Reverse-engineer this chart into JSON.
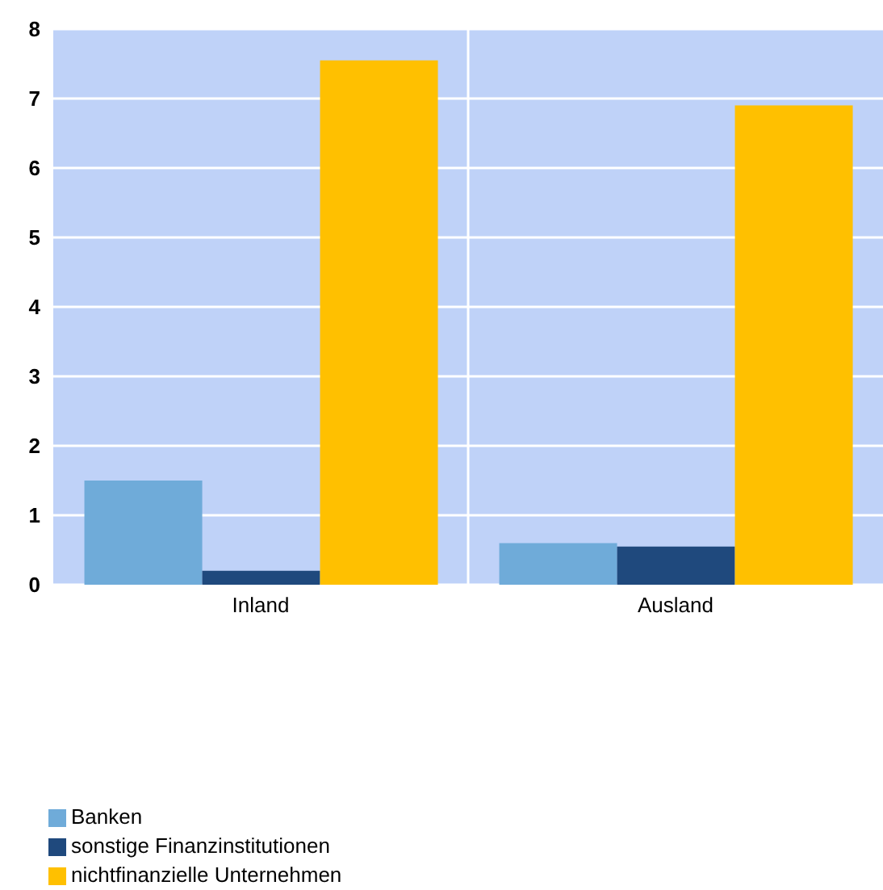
{
  "chart_data": {
    "type": "bar",
    "categories": [
      "Inland",
      "Ausland"
    ],
    "series": [
      {
        "name": "Banken",
        "color": "#6fabd9",
        "values": [
          1.5,
          0.6
        ]
      },
      {
        "name": "sonstige Finanzinstitutionen",
        "color": "#1f497d",
        "values": [
          0.2,
          0.55
        ]
      },
      {
        "name": "nichtfinanzielle Unternehmen",
        "color": "#ffc000",
        "values": [
          7.55,
          6.9
        ]
      }
    ],
    "ylim": [
      0,
      8
    ],
    "yticks": [
      0,
      1,
      2,
      3,
      4,
      5,
      6,
      7,
      8
    ],
    "grid": true,
    "legend": "bottom left"
  }
}
